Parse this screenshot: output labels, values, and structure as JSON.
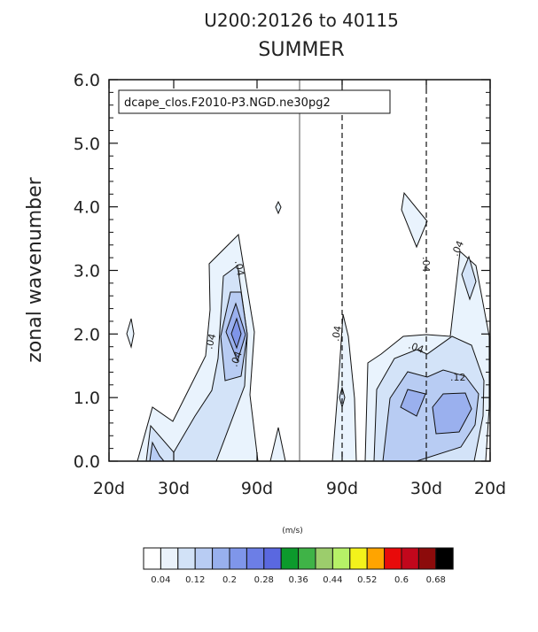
{
  "chart_data": {
    "type": "contour",
    "title": "U200:20126 to 40115",
    "subtitle": "SUMMER",
    "ylabel": "zonal wavenumber",
    "legend_label": "dcape_clos.F2010-P3.NGD.ne30pg2",
    "units_label": "(m/s)",
    "y_ticks": [
      "0.0",
      "1.0",
      "2.0",
      "3.0",
      "4.0",
      "5.0",
      "6.0"
    ],
    "x_ticks": [
      "20d",
      "30d",
      "90d",
      "90d",
      "30d",
      "20d"
    ],
    "ylim": [
      0,
      6
    ],
    "contour_labels": [
      ".04",
      ".04",
      ".04",
      ".04",
      ".04",
      ".04",
      ".04",
      ".12"
    ],
    "colorbar": {
      "labels": [
        "0.04",
        "0.12",
        "0.2",
        "0.28",
        "0.36",
        "0.44",
        "0.52",
        "0.6",
        "0.68"
      ],
      "colors": [
        "#ffffff",
        "#eaf2fb",
        "#d2e2f7",
        "#b8ccf3",
        "#98b0ee",
        "#7f96ea",
        "#6c7ee6",
        "#5a68e0",
        "#0c9a2c",
        "#3fb347",
        "#9ccd6c",
        "#b6f167",
        "#f3f21b",
        "#ffa400",
        "#e80a0a",
        "#c2071c",
        "#8c0b0b",
        "#000000"
      ]
    },
    "filled_levels": [
      {
        "level": 0.04,
        "color": "#e9f3fd"
      },
      {
        "level": 0.08,
        "color": "#d3e3f8"
      },
      {
        "level": 0.12,
        "color": "#b8ccf3"
      },
      {
        "level": 0.16,
        "color": "#9ab0ee"
      },
      {
        "level": 0.2,
        "color": "#7f95e9"
      }
    ]
  }
}
